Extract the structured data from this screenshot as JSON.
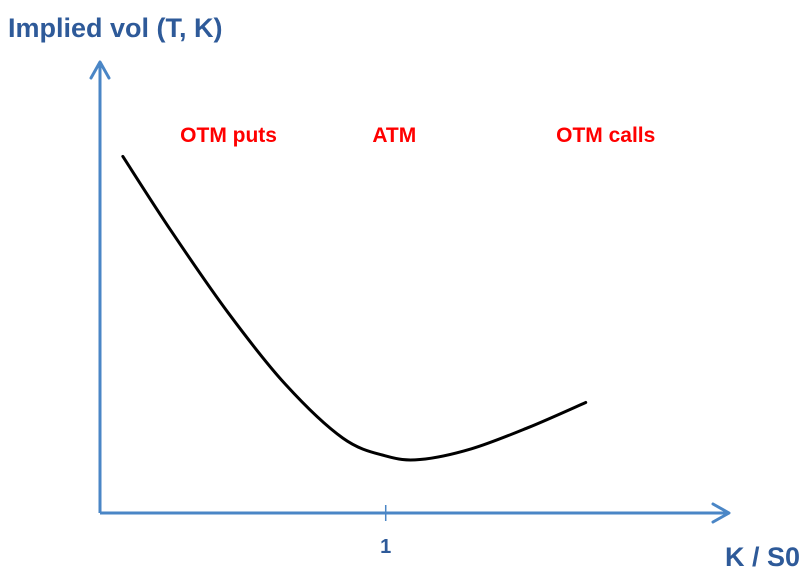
{
  "chart_data": {
    "type": "line",
    "title": "",
    "ylabel": "Implied vol (T, K)",
    "xlabel": "K / S0",
    "x_ticks": [
      {
        "value": 1,
        "label": "1"
      }
    ],
    "xlim": [
      0,
      2.1
    ],
    "ylim": [
      0,
      1.22
    ],
    "grid": false,
    "axis_color": "#4a86c6",
    "label_color": "#2e5a99",
    "annotation_color": "#ff0000",
    "series": [
      {
        "line_color": "#000000",
        "x": [
          0.08,
          0.25,
          0.45,
          0.65,
          0.85,
          1.0,
          1.12,
          1.3,
          1.5,
          1.7
        ],
        "y": [
          1.0,
          0.79,
          0.56,
          0.36,
          0.21,
          0.16,
          0.15,
          0.18,
          0.24,
          0.31
        ]
      }
    ],
    "annotations": [
      {
        "text": "OTM puts",
        "x": 0.45,
        "y": 1.04
      },
      {
        "text": "ATM",
        "x": 1.03,
        "y": 1.04
      },
      {
        "text": "OTM calls",
        "x": 1.77,
        "y": 1.04
      }
    ]
  }
}
